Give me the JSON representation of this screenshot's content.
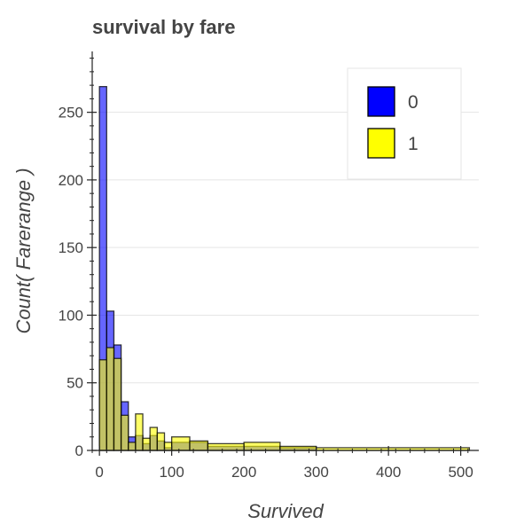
{
  "chart_data": {
    "type": "bar",
    "title": "survival by fare",
    "xlabel": "Survived",
    "ylabel": "Count( Farerange )",
    "xlim": [
      -10,
      525
    ],
    "ylim": [
      0,
      295
    ],
    "x_ticks": [
      0,
      100,
      200,
      300,
      400,
      500
    ],
    "y_ticks": [
      0,
      50,
      100,
      150,
      200,
      250
    ],
    "grid": true,
    "legend_position": "top-right",
    "series": [
      {
        "name": "0",
        "color": "#0000ff",
        "bins": [
          {
            "x0": 0,
            "x1": 10,
            "value": 269
          },
          {
            "x0": 10,
            "x1": 20,
            "value": 103
          },
          {
            "x0": 20,
            "x1": 30,
            "value": 78
          },
          {
            "x0": 30,
            "x1": 40,
            "value": 36
          },
          {
            "x0": 40,
            "x1": 50,
            "value": 10
          },
          {
            "x0": 50,
            "x1": 60,
            "value": 11
          },
          {
            "x0": 60,
            "x1": 70,
            "value": 5
          },
          {
            "x0": 70,
            "x1": 80,
            "value": 11
          },
          {
            "x0": 80,
            "x1": 90,
            "value": 7
          },
          {
            "x0": 90,
            "x1": 100,
            "value": 2
          },
          {
            "x0": 100,
            "x1": 150,
            "value": 6
          },
          {
            "x0": 150,
            "x1": 200,
            "value": 3
          },
          {
            "x0": 200,
            "x1": 250,
            "value": 3
          },
          {
            "x0": 250,
            "x1": 300,
            "value": 2
          }
        ]
      },
      {
        "name": "1",
        "color": "#ffff00",
        "bins": [
          {
            "x0": 0,
            "x1": 10,
            "value": 67
          },
          {
            "x0": 10,
            "x1": 20,
            "value": 76
          },
          {
            "x0": 20,
            "x1": 30,
            "value": 68
          },
          {
            "x0": 30,
            "x1": 40,
            "value": 26
          },
          {
            "x0": 40,
            "x1": 50,
            "value": 6
          },
          {
            "x0": 50,
            "x1": 60,
            "value": 27
          },
          {
            "x0": 60,
            "x1": 70,
            "value": 9
          },
          {
            "x0": 70,
            "x1": 80,
            "value": 17
          },
          {
            "x0": 80,
            "x1": 90,
            "value": 13
          },
          {
            "x0": 90,
            "x1": 100,
            "value": 6
          },
          {
            "x0": 100,
            "x1": 125,
            "value": 10
          },
          {
            "x0": 125,
            "x1": 150,
            "value": 7
          },
          {
            "x0": 150,
            "x1": 200,
            "value": 5
          },
          {
            "x0": 200,
            "x1": 250,
            "value": 6
          },
          {
            "x0": 250,
            "x1": 300,
            "value": 3
          },
          {
            "x0": 300,
            "x1": 512,
            "value": 2
          }
        ]
      }
    ]
  }
}
